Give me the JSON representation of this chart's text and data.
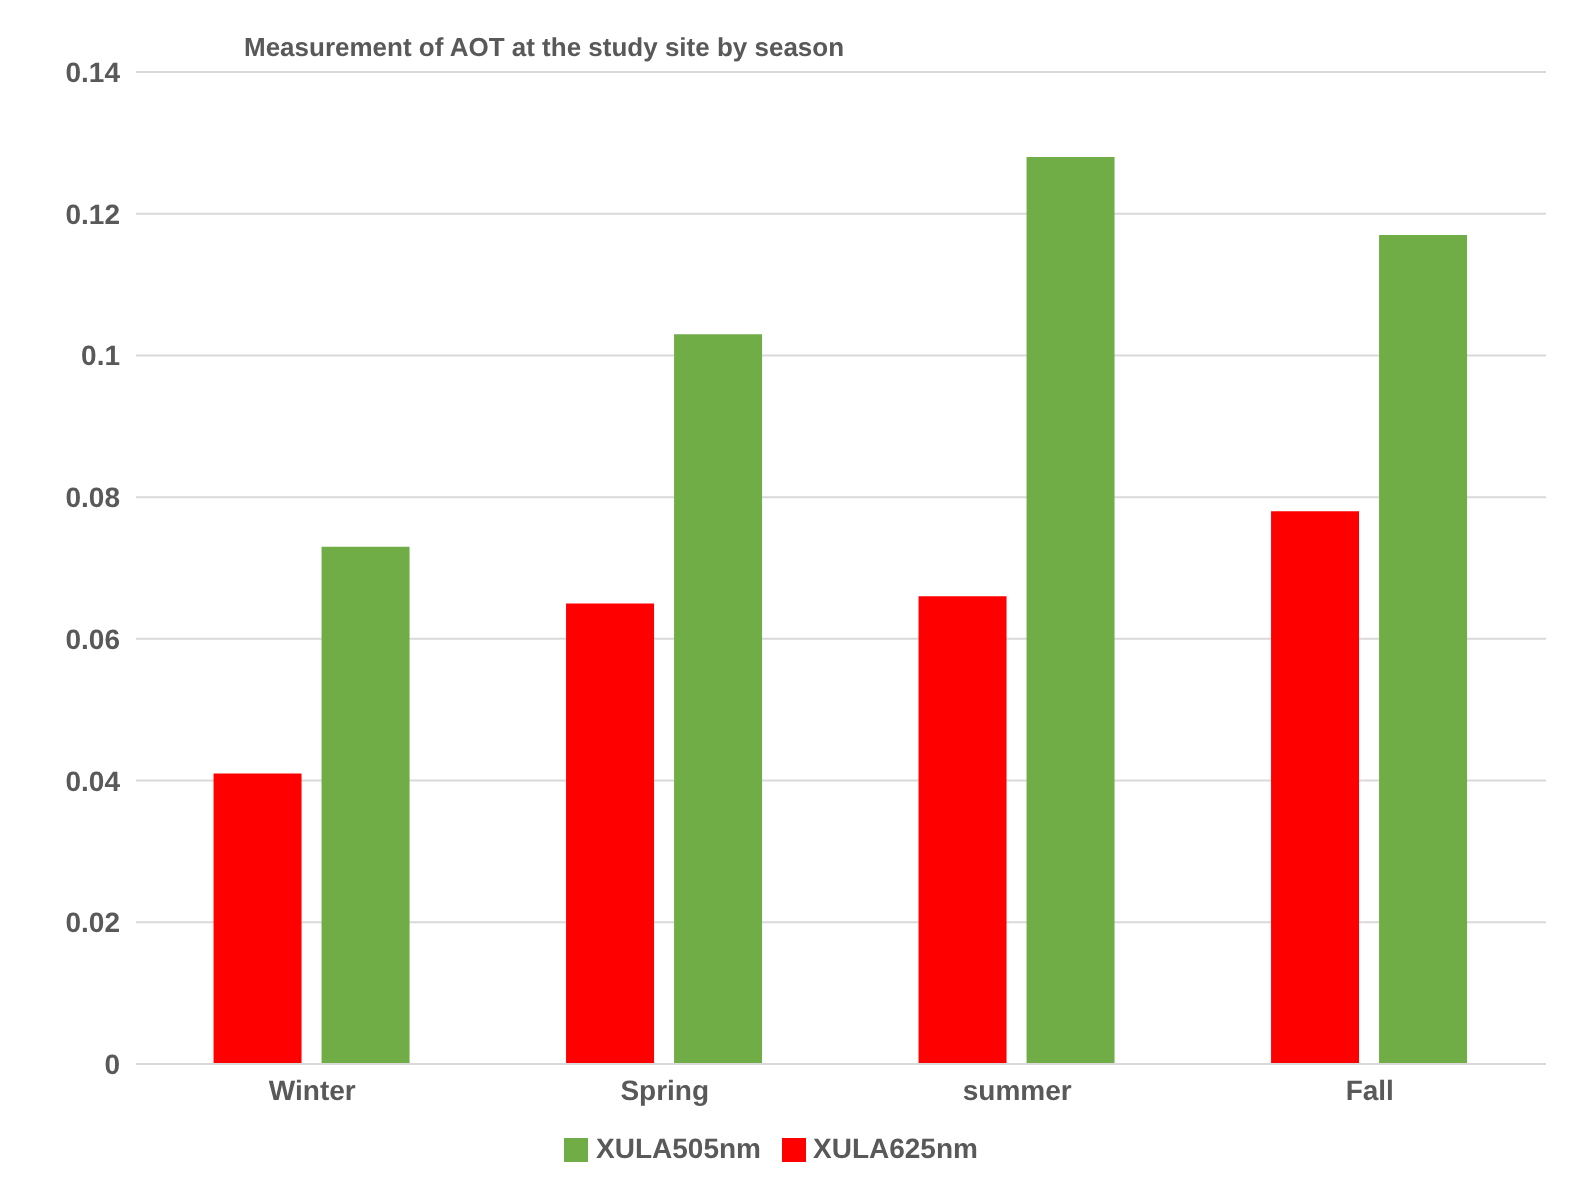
{
  "chart_data": {
    "type": "bar",
    "title": "Measurement of AOT at the study site by season",
    "categories": [
      "Winter",
      "Spring",
      "summer",
      "Fall"
    ],
    "series": [
      {
        "name": "XULA625nm",
        "color": "#ff0000",
        "values": [
          0.041,
          0.065,
          0.066,
          0.078
        ]
      },
      {
        "name": "XULA505nm",
        "color": "#70ad47",
        "values": [
          0.073,
          0.103,
          0.128,
          0.117
        ]
      }
    ],
    "ylim": [
      0,
      0.14
    ],
    "yticks": [
      0,
      0.02,
      0.04,
      0.06,
      0.08,
      0.1,
      0.12,
      0.14
    ],
    "grid": "y",
    "legend": "bottom"
  }
}
